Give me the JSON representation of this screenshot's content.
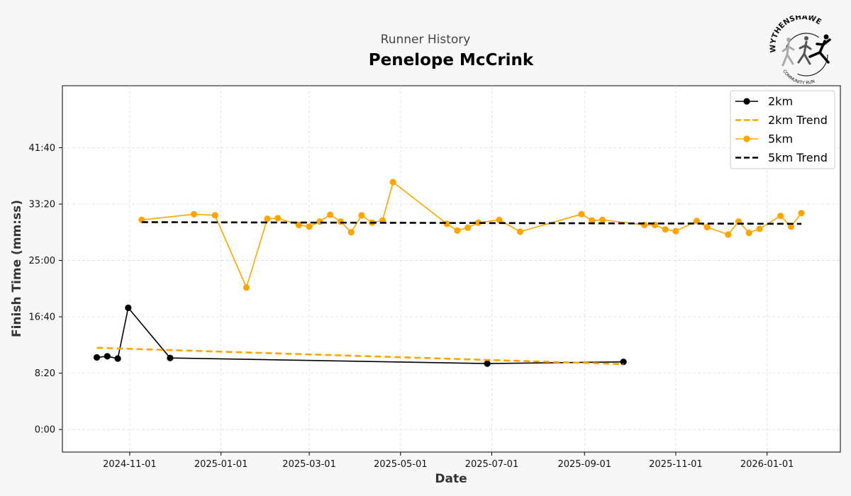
{
  "header": {
    "subtitle": "Runner History",
    "title": "Penelope McCrink"
  },
  "logo": {
    "text_top": "WYTHENSHAWE",
    "text_bottom": "COMMUNITY RUN",
    "icon": "runners-logo-icon"
  },
  "colors": {
    "series_2km": "#000000",
    "series_5km": "#FFA500",
    "grid": "#dddddd",
    "background": "#f7f7f7"
  },
  "chart_data": {
    "type": "line",
    "xlabel": "Date",
    "ylabel": "Finish Time (mm:ss)",
    "x_ticks": [
      "2024-11-01",
      "2025-01-01",
      "2025-03-01",
      "2025-05-01",
      "2025-07-01",
      "2025-09-01",
      "2025-11-01",
      "2026-01-01"
    ],
    "y_ticks": [
      "0:00",
      "8:20",
      "16:40",
      "25:00",
      "33:20",
      "41:40"
    ],
    "x_range": [
      "2024-09-17",
      "2026-02-19"
    ],
    "y_range": [
      "-3:20",
      "50:50"
    ],
    "grid": true,
    "legend_position": "top-right",
    "legend": [
      "2km",
      "2km Trend",
      "5km",
      "5km Trend"
    ],
    "series": [
      {
        "name": "2km",
        "style": "solid-marker",
        "color": "#000000",
        "points": [
          {
            "x": "2024-10-10",
            "y": "10:40"
          },
          {
            "x": "2024-10-17",
            "y": "10:50"
          },
          {
            "x": "2024-10-24",
            "y": "10:30"
          },
          {
            "x": "2024-10-31",
            "y": "18:00"
          },
          {
            "x": "2024-11-28",
            "y": "10:35"
          },
          {
            "x": "2025-06-28",
            "y": "9:45"
          },
          {
            "x": "2025-09-27",
            "y": "10:00"
          }
        ]
      },
      {
        "name": "2km Trend",
        "style": "dashed",
        "color": "#FFA500",
        "points": [
          {
            "x": "2024-10-10",
            "y": "12:05"
          },
          {
            "x": "2025-09-27",
            "y": "9:40"
          }
        ]
      },
      {
        "name": "5km",
        "style": "solid-marker",
        "color": "#FFA500",
        "points": [
          {
            "x": "2024-11-09",
            "y": "31:00"
          },
          {
            "x": "2024-12-14",
            "y": "31:50"
          },
          {
            "x": "2024-12-28",
            "y": "31:40"
          },
          {
            "x": "2025-01-18",
            "y": "21:00"
          },
          {
            "x": "2025-02-01",
            "y": "31:10"
          },
          {
            "x": "2025-02-08",
            "y": "31:15"
          },
          {
            "x": "2025-02-22",
            "y": "30:15"
          },
          {
            "x": "2025-03-01",
            "y": "30:00"
          },
          {
            "x": "2025-03-08",
            "y": "30:45"
          },
          {
            "x": "2025-03-15",
            "y": "31:45"
          },
          {
            "x": "2025-03-22",
            "y": "30:45"
          },
          {
            "x": "2025-03-29",
            "y": "29:10"
          },
          {
            "x": "2025-04-05",
            "y": "31:40"
          },
          {
            "x": "2025-04-12",
            "y": "30:35"
          },
          {
            "x": "2025-04-19",
            "y": "30:55"
          },
          {
            "x": "2025-04-26",
            "y": "36:35"
          },
          {
            "x": "2025-06-01",
            "y": "30:25"
          },
          {
            "x": "2025-06-08",
            "y": "29:25"
          },
          {
            "x": "2025-06-15",
            "y": "29:50"
          },
          {
            "x": "2025-06-22",
            "y": "30:35"
          },
          {
            "x": "2025-07-06",
            "y": "31:00"
          },
          {
            "x": "2025-07-20",
            "y": "29:15"
          },
          {
            "x": "2025-08-30",
            "y": "31:50"
          },
          {
            "x": "2025-09-06",
            "y": "30:55"
          },
          {
            "x": "2025-09-13",
            "y": "31:00"
          },
          {
            "x": "2025-10-11",
            "y": "30:15"
          },
          {
            "x": "2025-10-18",
            "y": "30:15"
          },
          {
            "x": "2025-10-25",
            "y": "29:35"
          },
          {
            "x": "2025-11-01",
            "y": "29:20"
          },
          {
            "x": "2025-11-15",
            "y": "30:50"
          },
          {
            "x": "2025-11-22",
            "y": "29:55"
          },
          {
            "x": "2025-12-06",
            "y": "28:50"
          },
          {
            "x": "2025-12-13",
            "y": "30:45"
          },
          {
            "x": "2025-12-20",
            "y": "29:05"
          },
          {
            "x": "2025-12-27",
            "y": "29:40"
          },
          {
            "x": "2026-01-10",
            "y": "31:35"
          },
          {
            "x": "2026-01-17",
            "y": "30:00"
          },
          {
            "x": "2026-01-24",
            "y": "32:00"
          }
        ]
      },
      {
        "name": "5km Trend",
        "style": "dashed",
        "color": "#000000",
        "points": [
          {
            "x": "2024-11-09",
            "y": "30:40"
          },
          {
            "x": "2026-01-24",
            "y": "30:25"
          }
        ]
      }
    ]
  }
}
